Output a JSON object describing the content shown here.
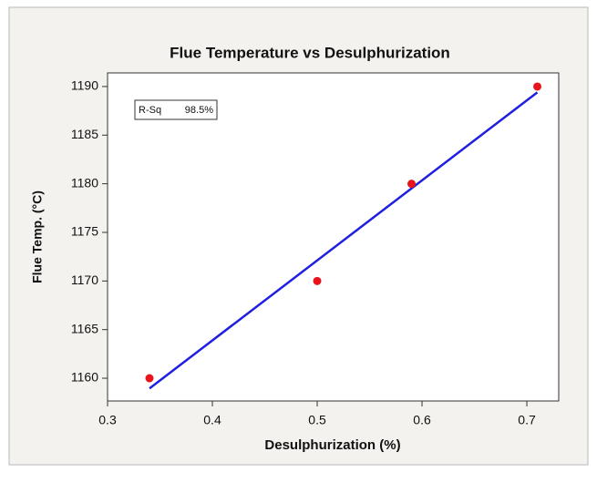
{
  "chart_data": {
    "type": "scatter",
    "title": "Flue Temperature vs Desulphurization",
    "x_label": "Desulphurization (%)",
    "y_label": "Flue Temp. (°C)",
    "points": {
      "x": [
        0.34,
        0.5,
        0.59,
        0.71
      ],
      "y": [
        1160,
        1170,
        1180,
        1190
      ],
      "color": "#e8141c"
    },
    "fit_line": {
      "x": [
        0.34,
        0.71
      ],
      "y": [
        1158.95,
        1189.4
      ],
      "color": "#1f1fe0"
    },
    "annotation": {
      "label": "R-Sq",
      "value": "98.5%"
    },
    "xlim": [
      0.3,
      0.7304
    ],
    "xticks": [
      0.3,
      0.4,
      0.5,
      0.6,
      0.7
    ],
    "ylim": [
      1157.66,
      1191.4
    ],
    "yticks": [
      1160,
      1165,
      1170,
      1175,
      1180,
      1185,
      1190
    ]
  }
}
